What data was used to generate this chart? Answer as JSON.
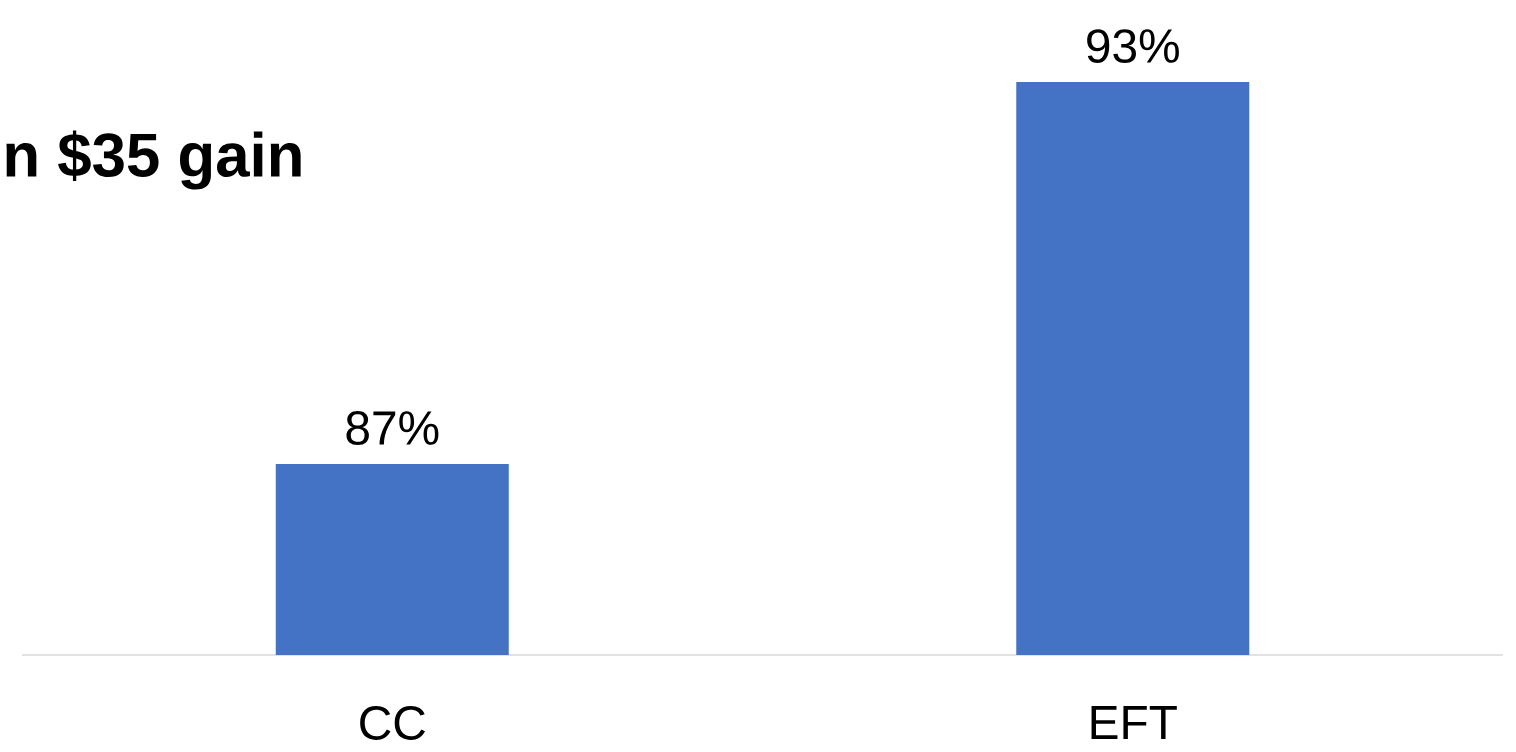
{
  "chart_data": {
    "type": "bar",
    "title": "n $35 gain",
    "categories": [
      "CC",
      "EFT"
    ],
    "values": [
      87,
      93
    ],
    "value_labels": [
      "87%",
      "93%"
    ],
    "color": "#4472c4",
    "ylim": [
      84,
      93
    ]
  }
}
